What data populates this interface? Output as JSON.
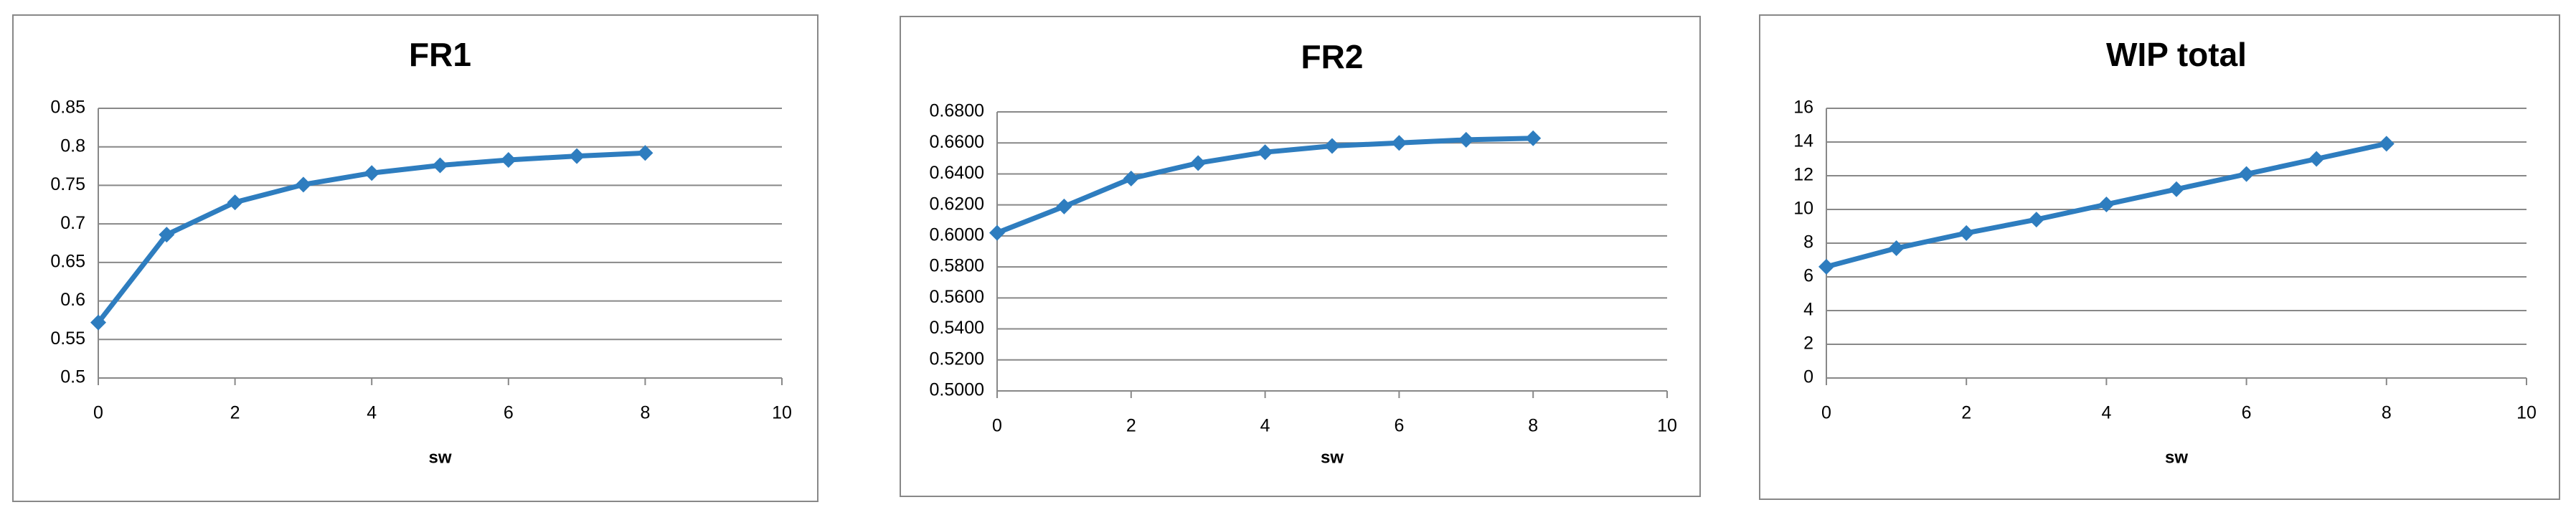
{
  "chart_data": [
    {
      "type": "line",
      "title": "FR1",
      "xlabel": "sw",
      "x": [
        0,
        1,
        2,
        3,
        4,
        5,
        6,
        7,
        8
      ],
      "values": [
        0.572,
        0.686,
        0.728,
        0.751,
        0.766,
        0.776,
        0.783,
        0.788,
        0.792
      ],
      "color": "#2e7dbf",
      "xlim": [
        0,
        10
      ],
      "xticks": [
        0,
        2,
        4,
        6,
        8,
        10
      ],
      "ylim": [
        0.5,
        0.85
      ],
      "yticks": [
        0.5,
        0.55,
        0.6,
        0.65,
        0.7,
        0.75,
        0.8,
        0.85
      ],
      "grid": true
    },
    {
      "type": "line",
      "title": "FR2",
      "xlabel": "sw",
      "x": [
        0,
        1,
        2,
        3,
        4,
        5,
        6,
        7,
        8
      ],
      "values": [
        0.602,
        0.619,
        0.637,
        0.647,
        0.654,
        0.658,
        0.66,
        0.662,
        0.663
      ],
      "color": "#2e7dbf",
      "xlim": [
        0,
        10
      ],
      "xticks": [
        0,
        2,
        4,
        6,
        8,
        10
      ],
      "ylim": [
        0.5,
        0.68
      ],
      "yticks": [
        {
          "value": 0.5,
          "label": "0.5000"
        },
        {
          "value": 0.52,
          "label": "0.5200"
        },
        {
          "value": 0.54,
          "label": "0.5400"
        },
        {
          "value": 0.56,
          "label": "0.5600"
        },
        {
          "value": 0.58,
          "label": "0.5800"
        },
        {
          "value": 0.6,
          "label": "0.6000"
        },
        {
          "value": 0.62,
          "label": "0.6200"
        },
        {
          "value": 0.64,
          "label": "0.6400"
        },
        {
          "value": 0.66,
          "label": "0.6600"
        },
        {
          "value": 0.68,
          "label": "0.6800"
        }
      ],
      "grid": true
    },
    {
      "type": "line",
      "title": "WIP total",
      "xlabel": "sw",
      "x": [
        0,
        1,
        2,
        3,
        4,
        5,
        6,
        7,
        8
      ],
      "values": [
        6.6,
        7.7,
        8.6,
        9.4,
        10.3,
        11.2,
        12.1,
        13.0,
        13.9
      ],
      "color": "#2e7dbf",
      "xlim": [
        0,
        10
      ],
      "xticks": [
        0,
        2,
        4,
        6,
        8,
        10
      ],
      "ylim": [
        0,
        16
      ],
      "yticks": [
        0,
        2,
        4,
        6,
        8,
        10,
        12,
        14,
        16
      ],
      "grid": true
    }
  ]
}
